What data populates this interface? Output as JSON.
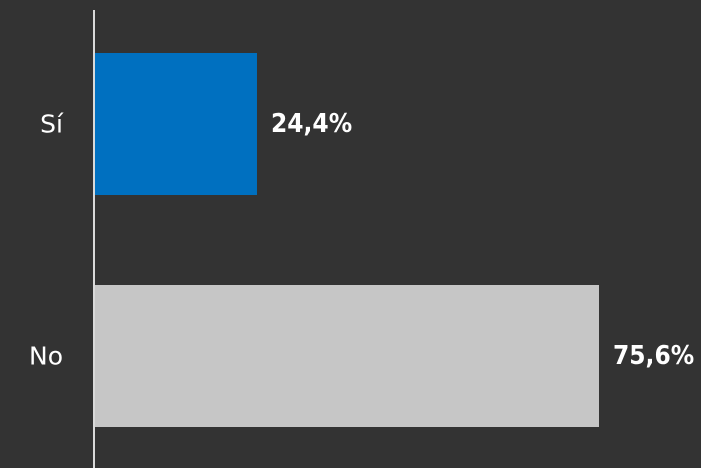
{
  "chart_data": {
    "type": "bar",
    "orientation": "horizontal",
    "categories": [
      "Sí",
      "No"
    ],
    "values": [
      24.4,
      75.6
    ],
    "value_labels": [
      "24,4%",
      "75,6%"
    ],
    "colors": [
      "#0070c0",
      "#c6c6c6"
    ],
    "background": "#333333",
    "axis_color": "#d9d9d9",
    "xlim": [
      0,
      75.6
    ],
    "grid": false,
    "legend": "none"
  }
}
